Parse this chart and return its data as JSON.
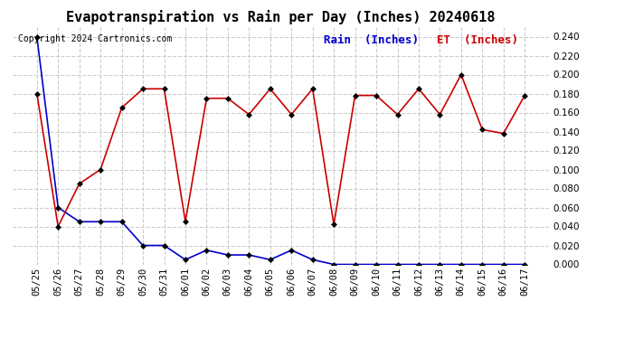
{
  "title": "Evapotranspiration vs Rain per Day (Inches) 20240618",
  "copyright": "Copyright 2024 Cartronics.com",
  "legend_rain": "Rain  (Inches)",
  "legend_et": "ET  (Inches)",
  "dates": [
    "05/25",
    "05/26",
    "05/27",
    "05/28",
    "05/29",
    "05/30",
    "05/31",
    "06/01",
    "06/02",
    "06/03",
    "06/04",
    "06/05",
    "06/06",
    "06/07",
    "06/08",
    "06/09",
    "06/10",
    "06/11",
    "06/12",
    "06/13",
    "06/14",
    "06/15",
    "06/16",
    "06/17"
  ],
  "rain": [
    0.24,
    0.06,
    0.045,
    0.045,
    0.045,
    0.02,
    0.02,
    0.005,
    0.015,
    0.01,
    0.01,
    0.005,
    0.015,
    0.005,
    0.0,
    0.0,
    0.0,
    0.0,
    0.0,
    0.0,
    0.0,
    0.0,
    0.0,
    0.0
  ],
  "et": [
    0.18,
    0.04,
    0.085,
    0.1,
    0.165,
    0.185,
    0.185,
    0.045,
    0.175,
    0.175,
    0.158,
    0.185,
    0.158,
    0.185,
    0.042,
    0.178,
    0.178,
    0.158,
    0.185,
    0.158,
    0.2,
    0.142,
    0.138,
    0.178
  ],
  "rain_color": "#0000CC",
  "et_color": "#CC0000",
  "title_color": "#000000",
  "copyright_color": "#000000",
  "legend_rain_color": "#0000CC",
  "legend_et_color": "#CC0000",
  "background_color": "#FFFFFF",
  "grid_color": "#CCCCCC",
  "ylim": [
    0.0,
    0.25
  ],
  "yticks": [
    0.0,
    0.02,
    0.04,
    0.06,
    0.08,
    0.1,
    0.12,
    0.14,
    0.16,
    0.18,
    0.2,
    0.22,
    0.24
  ],
  "title_fontsize": 11,
  "axis_fontsize": 7.5,
  "copyright_fontsize": 7,
  "legend_fontsize": 9,
  "marker": "D",
  "marker_size": 3,
  "line_width": 1.2
}
